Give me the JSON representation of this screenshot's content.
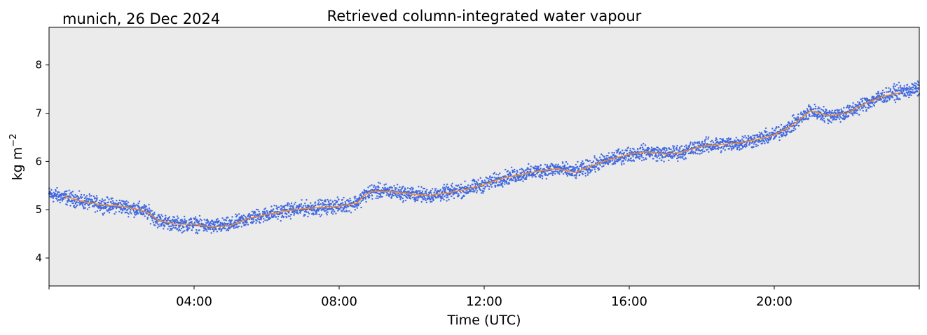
{
  "chart_data": {
    "type": "scatter",
    "title": "Retrieved column-integrated water vapour",
    "subtitle": "munich, 26 Dec 2024",
    "xlabel": "Time (UTC)",
    "ylabel_main": "kg m",
    "ylabel_sup": "−2",
    "xlim": [
      0,
      24
    ],
    "ylim": [
      3.42,
      8.78
    ],
    "xticks": [
      {
        "value": 0,
        "label": ""
      },
      {
        "value": 4,
        "label": "04:00"
      },
      {
        "value": 8,
        "label": "08:00"
      },
      {
        "value": 12,
        "label": "12:00"
      },
      {
        "value": 16,
        "label": "16:00"
      },
      {
        "value": 20,
        "label": "20:00"
      },
      {
        "value": 24,
        "label": ""
      }
    ],
    "yticks": [
      {
        "value": 4,
        "label": "4"
      },
      {
        "value": 5,
        "label": "5"
      },
      {
        "value": 6,
        "label": "6"
      },
      {
        "value": 7,
        "label": "7"
      },
      {
        "value": 8,
        "label": "8"
      }
    ],
    "grid": false,
    "plot_background": "#ebebeb",
    "series": [
      {
        "kind": "scatter",
        "color": "#4169e1",
        "spread": 0.22,
        "x": [
          0,
          0.5,
          1,
          1.5,
          2,
          2.5,
          2.75,
          3,
          3.5,
          4,
          4.5,
          5,
          5.5,
          6,
          6.5,
          7,
          7.5,
          8,
          8.5,
          8.7,
          8.9,
          9,
          9.5,
          10,
          10.5,
          11,
          11.5,
          12,
          12.5,
          13,
          13.5,
          14,
          14.5,
          15,
          15.5,
          16,
          16.5,
          17,
          17.5,
          18,
          18.5,
          19,
          19.5,
          20,
          20.5,
          21,
          21.5,
          22,
          22.5,
          23,
          23.5,
          24
        ],
        "y": [
          5.32,
          5.25,
          5.16,
          5.1,
          5.07,
          5.0,
          4.93,
          4.78,
          4.7,
          4.7,
          4.65,
          4.68,
          4.82,
          4.9,
          4.97,
          5.02,
          5.05,
          5.08,
          5.15,
          5.3,
          5.38,
          5.38,
          5.37,
          5.32,
          5.3,
          5.35,
          5.42,
          5.52,
          5.65,
          5.73,
          5.8,
          5.85,
          5.78,
          5.92,
          6.05,
          6.15,
          6.2,
          6.15,
          6.2,
          6.32,
          6.35,
          6.38,
          6.45,
          6.55,
          6.75,
          7.05,
          6.95,
          7.0,
          7.2,
          7.35,
          7.45,
          7.5
        ]
      },
      {
        "kind": "line",
        "color": "#ff8c1a",
        "x": [
          0.4,
          1,
          1.5,
          2,
          2.5,
          2.75,
          3,
          3.5,
          4,
          4.5,
          5,
          5.5,
          6,
          6.5,
          7,
          7.5,
          8,
          8.5,
          8.7,
          8.9,
          9,
          9.5,
          10,
          10.5,
          11,
          11.5,
          12,
          12.5,
          13,
          13.5,
          14,
          14.5,
          15,
          15.5,
          16,
          16.5,
          17,
          17.5,
          18,
          18.5,
          19,
          19.5,
          20,
          20.5,
          21,
          21.5,
          22,
          22.5,
          23,
          23.5
        ],
        "y": [
          5.28,
          5.16,
          5.1,
          5.07,
          5.0,
          4.93,
          4.78,
          4.7,
          4.7,
          4.64,
          4.67,
          4.82,
          4.9,
          4.97,
          5.02,
          5.05,
          5.07,
          5.14,
          5.3,
          5.38,
          5.38,
          5.37,
          5.32,
          5.3,
          5.35,
          5.42,
          5.52,
          5.65,
          5.73,
          5.8,
          5.85,
          5.77,
          5.92,
          6.05,
          6.15,
          6.2,
          6.15,
          6.2,
          6.32,
          6.35,
          6.38,
          6.45,
          6.55,
          6.75,
          7.05,
          6.95,
          7.0,
          7.2,
          7.35,
          7.43
        ]
      }
    ]
  }
}
